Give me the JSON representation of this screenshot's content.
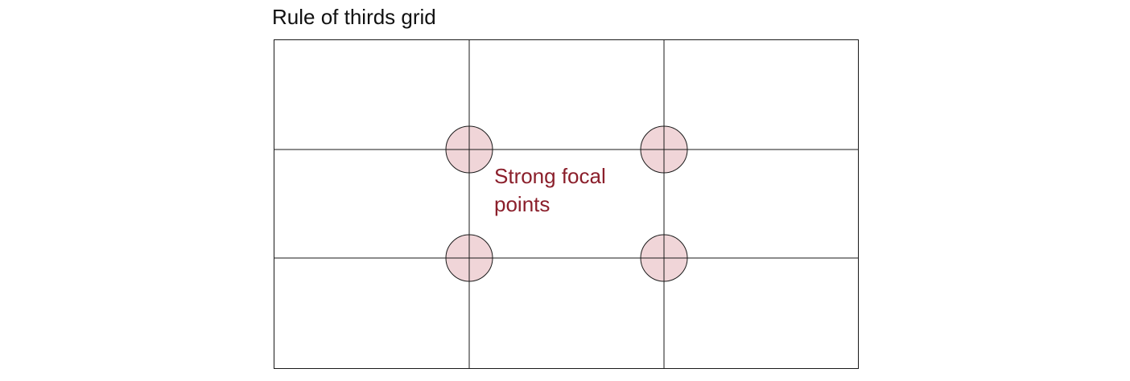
{
  "diagram": {
    "title": "Rule of thirds grid",
    "label_lines": [
      "Strong focal",
      "points"
    ],
    "columns": 3,
    "rows": 3
  },
  "colors": {
    "line": "#1a1a1a",
    "focal_fill": "#f0d5d8",
    "label": "#8b1f2b"
  }
}
